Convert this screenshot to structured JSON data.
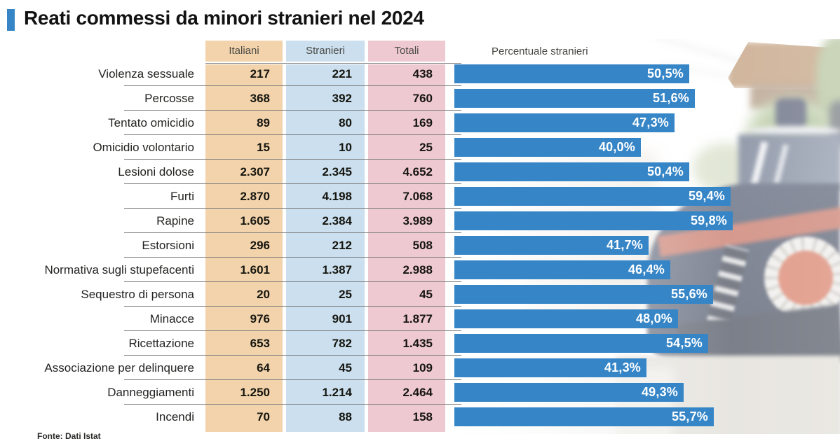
{
  "title": "Reati commessi da minori stranieri nel 2024",
  "source": "Fonte: Dati Istat",
  "table": {
    "columns": [
      "Italiani",
      "Stranieri",
      "Totali"
    ],
    "bar_header": "Percentuale stranieri"
  },
  "rows": [
    {
      "label": "Violenza sessuale",
      "italiani": "217",
      "stranieri": "221",
      "totali": "438",
      "pct": 50.5,
      "pct_label": "50,5%"
    },
    {
      "label": "Percosse",
      "italiani": "368",
      "stranieri": "392",
      "totali": "760",
      "pct": 51.6,
      "pct_label": "51,6%"
    },
    {
      "label": "Tentato omicidio",
      "italiani": "89",
      "stranieri": "80",
      "totali": "169",
      "pct": 47.3,
      "pct_label": "47,3%"
    },
    {
      "label": "Omicidio volontario",
      "italiani": "15",
      "stranieri": "10",
      "totali": "25",
      "pct": 40.0,
      "pct_label": "40,0%"
    },
    {
      "label": "Lesioni dolose",
      "italiani": "2.307",
      "stranieri": "2.345",
      "totali": "4.652",
      "pct": 50.4,
      "pct_label": "50,4%"
    },
    {
      "label": "Furti",
      "italiani": "2.870",
      "stranieri": "4.198",
      "totali": "7.068",
      "pct": 59.4,
      "pct_label": "59,4%"
    },
    {
      "label": "Rapine",
      "italiani": "1.605",
      "stranieri": "2.384",
      "totali": "3.989",
      "pct": 59.8,
      "pct_label": "59,8%"
    },
    {
      "label": "Estorsioni",
      "italiani": "296",
      "stranieri": "212",
      "totali": "508",
      "pct": 41.7,
      "pct_label": "41,7%"
    },
    {
      "label": "Normativa sugli stupefacenti",
      "italiani": "1.601",
      "stranieri": "1.387",
      "totali": "2.988",
      "pct": 46.4,
      "pct_label": "46,4%"
    },
    {
      "label": "Sequestro di persona",
      "italiani": "20",
      "stranieri": "25",
      "totali": "45",
      "pct": 55.6,
      "pct_label": "55,6%"
    },
    {
      "label": "Minacce",
      "italiani": "976",
      "stranieri": "901",
      "totali": "1.877",
      "pct": 48.0,
      "pct_label": "48,0%"
    },
    {
      "label": "Ricettazione",
      "italiani": "653",
      "stranieri": "782",
      "totali": "1.435",
      "pct": 54.5,
      "pct_label": "54,5%"
    },
    {
      "label": "Associazione per delinquere",
      "italiani": "64",
      "stranieri": "45",
      "totali": "109",
      "pct": 41.3,
      "pct_label": "41,3%"
    },
    {
      "label": "Danneggiamenti",
      "italiani": "1.250",
      "stranieri": "1.214",
      "totali": "2.464",
      "pct": 49.3,
      "pct_label": "49,3%"
    },
    {
      "label": "Incendi",
      "italiani": "70",
      "stranieri": "88",
      "totali": "158",
      "pct": 55.7,
      "pct_label": "55,7%"
    }
  ],
  "chart_data": {
    "type": "bar",
    "orientation": "horizontal",
    "title": "Reati commessi da minori stranieri nel 2024",
    "categories": [
      "Violenza sessuale",
      "Percosse",
      "Tentato omicidio",
      "Omicidio volontario",
      "Lesioni dolose",
      "Furti",
      "Rapine",
      "Estorsioni",
      "Normativa sugli stupefacenti",
      "Sequestro di persona",
      "Minacce",
      "Ricettazione",
      "Associazione per delinquere",
      "Danneggiamenti",
      "Incendi"
    ],
    "series": [
      {
        "name": "Italiani",
        "values": [
          217,
          368,
          89,
          15,
          2307,
          2870,
          1605,
          296,
          1601,
          20,
          976,
          653,
          64,
          1250,
          70
        ]
      },
      {
        "name": "Stranieri",
        "values": [
          221,
          392,
          80,
          10,
          2345,
          4198,
          2384,
          212,
          1387,
          25,
          901,
          782,
          45,
          1214,
          88
        ]
      },
      {
        "name": "Totali",
        "values": [
          438,
          760,
          169,
          25,
          4652,
          7068,
          3989,
          508,
          2988,
          45,
          1877,
          1435,
          109,
          2464,
          158
        ]
      },
      {
        "name": "Percentuale stranieri",
        "values": [
          50.5,
          51.6,
          47.3,
          40.0,
          50.4,
          59.4,
          59.8,
          41.7,
          46.4,
          55.6,
          48.0,
          54.5,
          41.3,
          49.3,
          55.7
        ]
      }
    ],
    "value_axis_range": [
      0,
      62
    ],
    "grid": false,
    "legend_position": "none",
    "source": "Fonte: Dati Istat"
  },
  "colors": {
    "bar": "#3585C7",
    "accent": "#3585C7",
    "col_italiani": "#F2D3AB",
    "col_stranieri": "#CBDFEE",
    "col_totali": "#EFC9D2"
  }
}
